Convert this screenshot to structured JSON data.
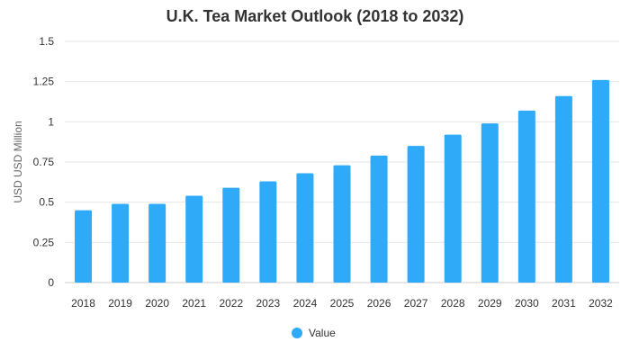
{
  "chart_data": {
    "type": "bar",
    "title": "U.K. Tea Market Outlook (2018 to 2032)",
    "xlabel": "",
    "ylabel": "USD USD Million",
    "categories": [
      "2018",
      "2019",
      "2020",
      "2021",
      "2022",
      "2023",
      "2024",
      "2025",
      "2026",
      "2027",
      "2028",
      "2029",
      "2030",
      "2031",
      "2032"
    ],
    "series": [
      {
        "name": "Value",
        "values": [
          0.45,
          0.49,
          0.49,
          0.54,
          0.59,
          0.63,
          0.68,
          0.73,
          0.79,
          0.85,
          0.92,
          0.99,
          1.07,
          1.16,
          1.26
        ],
        "color": "#2eaaf8"
      }
    ],
    "ylim": [
      0,
      1.5
    ],
    "yticks": [
      "0",
      "0.25",
      "0.5",
      "0.75",
      "1",
      "1.25",
      "1.5"
    ],
    "grid": true,
    "legend_position": "bottom"
  }
}
